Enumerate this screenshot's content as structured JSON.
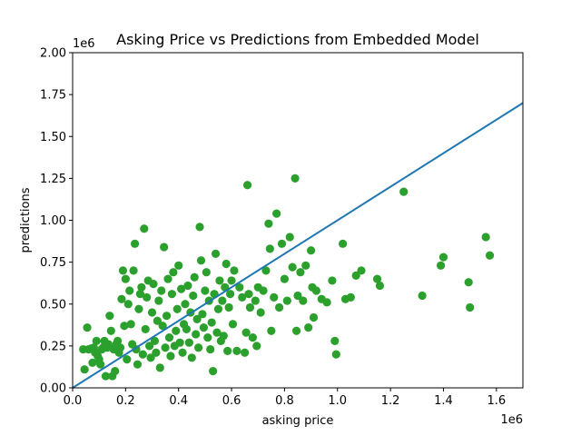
{
  "chart_data": {
    "type": "scatter",
    "title": "Asking Price vs Predictions from Embedded Model",
    "xlabel": "asking price",
    "ylabel": "predictions",
    "x_offset_label": "1e6",
    "y_offset_label": "1e6",
    "xlim": [
      0,
      1700000
    ],
    "ylim": [
      0,
      2000000
    ],
    "x_ticks": [
      0,
      200000,
      400000,
      600000,
      800000,
      1000000,
      1200000,
      1400000,
      1600000
    ],
    "x_tick_labels": [
      "0.0",
      "0.2",
      "0.4",
      "0.6",
      "0.8",
      "1.0",
      "1.2",
      "1.4",
      "1.6"
    ],
    "y_ticks": [
      0,
      250000,
      500000,
      750000,
      1000000,
      1250000,
      1500000,
      1750000,
      2000000
    ],
    "y_tick_labels": [
      "0.00",
      "0.25",
      "0.50",
      "0.75",
      "1.00",
      "1.25",
      "1.50",
      "1.75",
      "2.00"
    ],
    "grid": false,
    "colors": {
      "points": "#2ca02c",
      "line": "#1f77b4"
    },
    "reference_line": {
      "x": [
        0,
        1700000
      ],
      "y": [
        0,
        1700000
      ]
    },
    "series": [
      {
        "points": [
          [
            40000,
            230000
          ],
          [
            45000,
            110000
          ],
          [
            55000,
            360000
          ],
          [
            60000,
            230000
          ],
          [
            70000,
            235000
          ],
          [
            75000,
            150000
          ],
          [
            80000,
            240000
          ],
          [
            85000,
            210000
          ],
          [
            90000,
            280000
          ],
          [
            95000,
            190000
          ],
          [
            100000,
            170000
          ],
          [
            105000,
            140000
          ],
          [
            110000,
            230000
          ],
          [
            115000,
            240000
          ],
          [
            120000,
            280000
          ],
          [
            125000,
            70000
          ],
          [
            130000,
            240000
          ],
          [
            135000,
            260000
          ],
          [
            140000,
            430000
          ],
          [
            145000,
            340000
          ],
          [
            150000,
            70000
          ],
          [
            155000,
            230000
          ],
          [
            160000,
            100000
          ],
          [
            165000,
            260000
          ],
          [
            170000,
            280000
          ],
          [
            175000,
            210000
          ],
          [
            180000,
            240000
          ],
          [
            185000,
            530000
          ],
          [
            190000,
            700000
          ],
          [
            195000,
            370000
          ],
          [
            200000,
            650000
          ],
          [
            205000,
            170000
          ],
          [
            210000,
            500000
          ],
          [
            215000,
            580000
          ],
          [
            220000,
            380000
          ],
          [
            225000,
            260000
          ],
          [
            230000,
            700000
          ],
          [
            235000,
            860000
          ],
          [
            240000,
            230000
          ],
          [
            245000,
            140000
          ],
          [
            250000,
            470000
          ],
          [
            255000,
            560000
          ],
          [
            260000,
            600000
          ],
          [
            265000,
            200000
          ],
          [
            270000,
            950000
          ],
          [
            275000,
            350000
          ],
          [
            280000,
            540000
          ],
          [
            285000,
            640000
          ],
          [
            290000,
            250000
          ],
          [
            295000,
            180000
          ],
          [
            300000,
            450000
          ],
          [
            305000,
            620000
          ],
          [
            310000,
            280000
          ],
          [
            315000,
            210000
          ],
          [
            320000,
            400000
          ],
          [
            325000,
            520000
          ],
          [
            330000,
            120000
          ],
          [
            335000,
            580000
          ],
          [
            340000,
            370000
          ],
          [
            345000,
            840000
          ],
          [
            350000,
            240000
          ],
          [
            355000,
            430000
          ],
          [
            360000,
            650000
          ],
          [
            365000,
            300000
          ],
          [
            370000,
            190000
          ],
          [
            375000,
            560000
          ],
          [
            380000,
            690000
          ],
          [
            385000,
            250000
          ],
          [
            390000,
            340000
          ],
          [
            395000,
            470000
          ],
          [
            400000,
            730000
          ],
          [
            405000,
            270000
          ],
          [
            410000,
            590000
          ],
          [
            415000,
            210000
          ],
          [
            420000,
            380000
          ],
          [
            425000,
            500000
          ],
          [
            430000,
            350000
          ],
          [
            435000,
            610000
          ],
          [
            440000,
            270000
          ],
          [
            445000,
            450000
          ],
          [
            450000,
            180000
          ],
          [
            455000,
            550000
          ],
          [
            460000,
            660000
          ],
          [
            465000,
            320000
          ],
          [
            470000,
            410000
          ],
          [
            475000,
            240000
          ],
          [
            480000,
            960000
          ],
          [
            485000,
            760000
          ],
          [
            490000,
            440000
          ],
          [
            495000,
            360000
          ],
          [
            500000,
            580000
          ],
          [
            505000,
            690000
          ],
          [
            510000,
            300000
          ],
          [
            515000,
            520000
          ],
          [
            520000,
            230000
          ],
          [
            525000,
            390000
          ],
          [
            530000,
            100000
          ],
          [
            535000,
            560000
          ],
          [
            540000,
            800000
          ],
          [
            545000,
            330000
          ],
          [
            550000,
            470000
          ],
          [
            555000,
            640000
          ],
          [
            560000,
            280000
          ],
          [
            565000,
            520000
          ],
          [
            570000,
            310000
          ],
          [
            575000,
            600000
          ],
          [
            580000,
            740000
          ],
          [
            585000,
            220000
          ],
          [
            590000,
            480000
          ],
          [
            595000,
            560000
          ],
          [
            600000,
            640000
          ],
          [
            605000,
            380000
          ],
          [
            610000,
            700000
          ],
          [
            620000,
            220000
          ],
          [
            630000,
            600000
          ],
          [
            640000,
            540000
          ],
          [
            650000,
            210000
          ],
          [
            655000,
            330000
          ],
          [
            660000,
            1210000
          ],
          [
            665000,
            560000
          ],
          [
            670000,
            480000
          ],
          [
            680000,
            300000
          ],
          [
            690000,
            520000
          ],
          [
            695000,
            250000
          ],
          [
            700000,
            600000
          ],
          [
            710000,
            450000
          ],
          [
            720000,
            580000
          ],
          [
            730000,
            700000
          ],
          [
            740000,
            980000
          ],
          [
            745000,
            830000
          ],
          [
            750000,
            340000
          ],
          [
            760000,
            540000
          ],
          [
            770000,
            1040000
          ],
          [
            780000,
            480000
          ],
          [
            790000,
            860000
          ],
          [
            800000,
            650000
          ],
          [
            810000,
            520000
          ],
          [
            820000,
            900000
          ],
          [
            830000,
            720000
          ],
          [
            840000,
            1250000
          ],
          [
            845000,
            340000
          ],
          [
            850000,
            550000
          ],
          [
            860000,
            690000
          ],
          [
            870000,
            520000
          ],
          [
            880000,
            730000
          ],
          [
            890000,
            360000
          ],
          [
            900000,
            820000
          ],
          [
            905000,
            600000
          ],
          [
            910000,
            420000
          ],
          [
            920000,
            580000
          ],
          [
            940000,
            530000
          ],
          [
            960000,
            510000
          ],
          [
            980000,
            640000
          ],
          [
            990000,
            280000
          ],
          [
            995000,
            200000
          ],
          [
            1020000,
            860000
          ],
          [
            1030000,
            530000
          ],
          [
            1050000,
            540000
          ],
          [
            1070000,
            670000
          ],
          [
            1090000,
            700000
          ],
          [
            1150000,
            650000
          ],
          [
            1160000,
            610000
          ],
          [
            1250000,
            1170000
          ],
          [
            1320000,
            550000
          ],
          [
            1390000,
            730000
          ],
          [
            1400000,
            780000
          ],
          [
            1495000,
            630000
          ],
          [
            1500000,
            480000
          ],
          [
            1560000,
            900000
          ],
          [
            1575000,
            790000
          ]
        ]
      }
    ]
  }
}
